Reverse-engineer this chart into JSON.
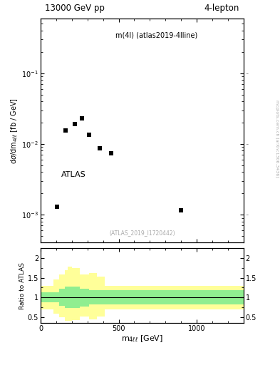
{
  "title_left": "13000 GeV pp",
  "title_right": "4-lepton",
  "plot_label": "m(4l) (atlas2019-4lline)",
  "atlas_label": "ATLAS",
  "inspire_label": "(ATLAS_2019_I1720442)",
  "right_label": "mcplots.cern.ch [arXiv:1306.3436]",
  "data_x": [
    105,
    160,
    220,
    265,
    310,
    380,
    450,
    900
  ],
  "data_y": [
    0.0013,
    0.0155,
    0.019,
    0.023,
    0.0135,
    0.0087,
    0.0073,
    0.00115
  ],
  "ylim_log": [
    0.0004,
    0.6
  ],
  "xlim": [
    0,
    1300
  ],
  "ratio_xlim": [
    0,
    1300
  ],
  "ratio_ylim": [
    0.35,
    2.25
  ],
  "ratio_yticks": [
    0.5,
    1.0,
    1.5,
    2.0
  ],
  "green_color": "#90EE90",
  "yellow_color": "#FFFF99",
  "green_band_edges": [
    0,
    80,
    120,
    155,
    200,
    250,
    310,
    410,
    1300
  ],
  "green_band_lo": [
    0.88,
    0.88,
    0.78,
    0.73,
    0.73,
    0.77,
    0.82,
    0.82,
    0.82
  ],
  "green_band_hi": [
    1.13,
    1.13,
    1.22,
    1.28,
    1.28,
    1.22,
    1.18,
    1.18,
    1.18
  ],
  "yellow_band_edges": [
    0,
    50,
    80,
    120,
    155,
    175,
    200,
    250,
    310,
    360,
    410,
    1300
  ],
  "yellow_band_lo": [
    0.7,
    0.7,
    0.58,
    0.5,
    0.4,
    0.4,
    0.42,
    0.52,
    0.45,
    0.52,
    0.7,
    0.7
  ],
  "yellow_band_hi": [
    1.3,
    1.3,
    1.45,
    1.58,
    1.7,
    1.78,
    1.75,
    1.58,
    1.62,
    1.52,
    1.3,
    1.3
  ],
  "marker_color": "black",
  "marker_size": 5
}
